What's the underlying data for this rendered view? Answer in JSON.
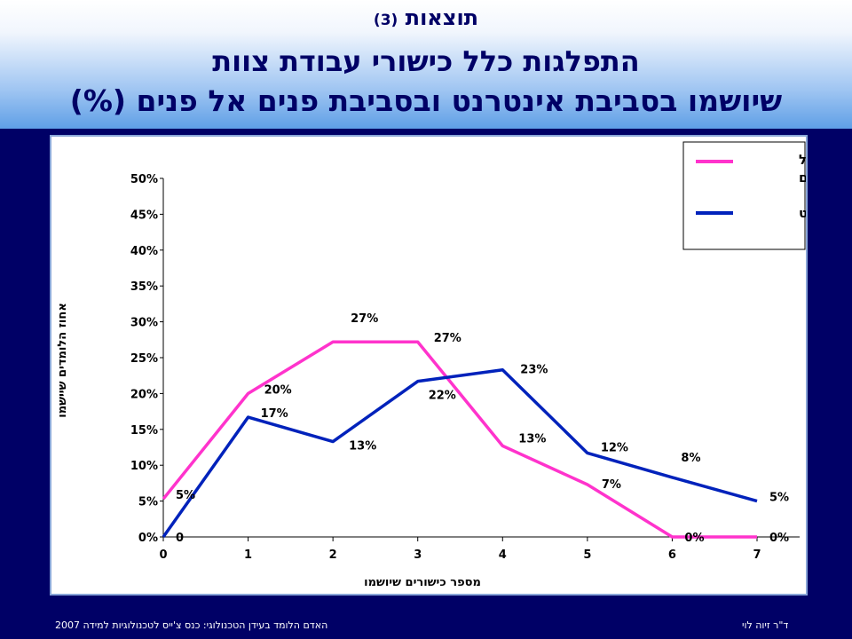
{
  "header": {
    "title_line1_text": "תוצאות",
    "title_line1_num": "(3)",
    "title_line2": "התפלגות כלל כישורי עבודת צוות",
    "title_line3": "שיושמו בסביבת אינטרנט ובסביבת פנים אל פנים (%)"
  },
  "footer": {
    "left": "האדם הלומד בעידן הטכנולוגי: כנס צ'ייס לטכנולוגיות למידה 2007",
    "right": "ד\"ר זיוה לוי"
  },
  "colors": {
    "background": "#000066",
    "face_to_face": "#ff33cc",
    "internet": "#0022bb"
  },
  "chart_data": {
    "type": "line",
    "title": "",
    "xlabel": "מספר כישורים שיושמו",
    "ylabel": "אחוז הלומדים שיישמו",
    "x": [
      0,
      1,
      2,
      3,
      4,
      5,
      6,
      7
    ],
    "xlim": [
      0,
      7
    ],
    "ylim": [
      0,
      50
    ],
    "yticks": [
      "0%",
      "5%",
      "10%",
      "15%",
      "20%",
      "25%",
      "30%",
      "35%",
      "40%",
      "45%",
      "50%"
    ],
    "grid": false,
    "legend_position": "top-right",
    "series": [
      {
        "name": "פנים אל פנים",
        "legend_lines": [
          "פנים אל",
          "פנים"
        ],
        "color": "#ff33cc",
        "values": [
          5.3,
          20,
          27.2,
          27.2,
          12.7,
          7.3,
          0,
          0
        ],
        "labels": [
          "5%",
          "20%",
          "27%",
          "27%",
          "13%",
          "7%",
          "0%",
          "0%"
        ]
      },
      {
        "name": "אינטרנט",
        "legend_lines": [
          "אינטרנט"
        ],
        "color": "#0022bb",
        "values": [
          0,
          16.7,
          13.3,
          21.7,
          23.3,
          11.7,
          8.3,
          5
        ],
        "labels": [
          "0",
          "17%",
          "13%",
          "22%",
          "23%",
          "12%",
          "8%",
          "5%"
        ]
      }
    ]
  }
}
